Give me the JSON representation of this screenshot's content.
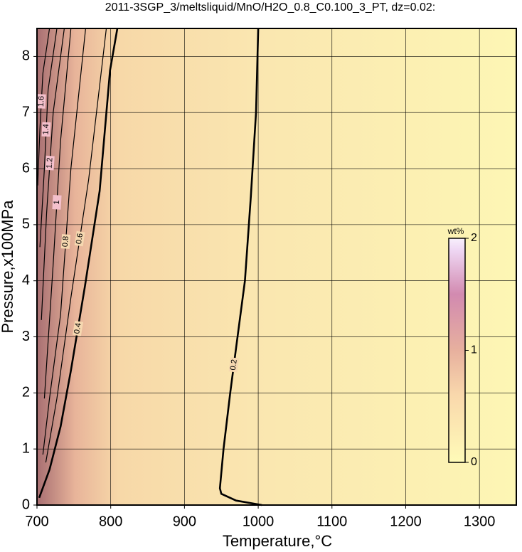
{
  "chart_data": {
    "type": "contour",
    "title": "2011-3SGP_3/meltsliquid/MnO/H2O_0.8_C0.100_3_PT, dz=0.02:",
    "x_label": "Temperature,°C",
    "y_label": "Pressure,x100MPa",
    "xlim": [
      700,
      1350
    ],
    "xticks": [
      700,
      800,
      900,
      1000,
      1100,
      1200,
      1300
    ],
    "ylim": [
      0,
      8.5
    ],
    "yticks": [
      0,
      1,
      2,
      3,
      4,
      5,
      6,
      7,
      8
    ],
    "grid": true,
    "contours": [
      {
        "level": 0.2,
        "x": [
          1000,
          997,
          990,
          982,
          972,
          962,
          953,
          948,
          950,
          970,
          1005
        ],
        "y": [
          8.5,
          7,
          5.5,
          4,
          3,
          2,
          1,
          0.3,
          0.2,
          0.08,
          0
        ]
      },
      {
        "level": 0.4,
        "x": [
          809,
          799,
          785,
          765,
          746,
          732,
          717,
          703
        ],
        "y": [
          8.5,
          7.75,
          5.6,
          3.9,
          2.4,
          1.4,
          0.63,
          0.13
        ]
      },
      {
        "level": 0.6,
        "x": [
          794,
          770,
          746,
          727,
          712
        ],
        "y": [
          8.5,
          5.8,
          3.7,
          1.9,
          0.76
        ]
      },
      {
        "level": 0.8,
        "x": [
          766,
          746,
          732,
          717,
          708
        ],
        "y": [
          8.5,
          6,
          3.4,
          1.9,
          0.9
        ]
      },
      {
        "level": 1,
        "x": [
          746,
          732,
          722,
          710
        ],
        "y": [
          8.5,
          6.5,
          4.3,
          1.9
        ]
      },
      {
        "level": 1.2,
        "x": [
          737,
          722,
          713,
          706
        ],
        "y": [
          8.5,
          7,
          5.2,
          3.3
        ]
      },
      {
        "level": 1.4,
        "x": [
          727,
          715,
          710,
          704
        ],
        "y": [
          8.5,
          7.4,
          6,
          4.6
        ]
      },
      {
        "level": 1.6,
        "x": [
          717,
          708,
          704,
          701
        ],
        "y": [
          8.5,
          7.7,
          6.7,
          5.7
        ]
      }
    ],
    "colorbar": {
      "label": "wt%",
      "lim": [
        0,
        2
      ],
      "ticks": [
        0,
        1,
        2
      ]
    }
  }
}
